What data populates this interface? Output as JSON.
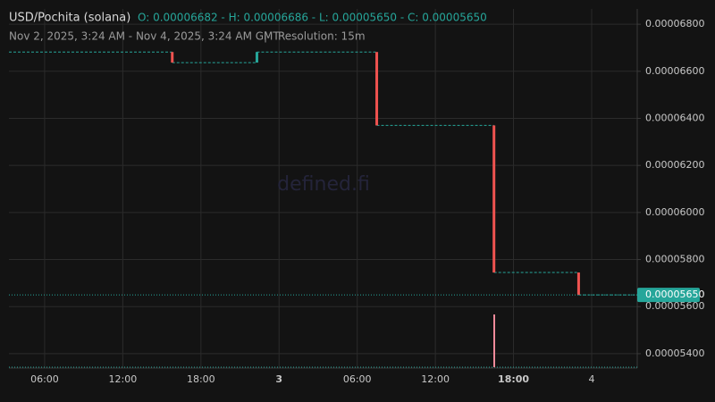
{
  "chart_data": {
    "type": "step",
    "title": "USD/Pochita (solana)",
    "ohlc_text": "O: 0.00006682 - H: 0.00006686 - L: 0.00005650 - C: 0.00005650",
    "range_text": "Nov 2, 2025, 3:24 AM - Nov 4, 2025, 3:24 AM GMT",
    "separator": "|",
    "resolution_text": "Resolution: 15m",
    "watermark": "defined.fi",
    "x": [
      15.8,
      22.3,
      31.5,
      40.5,
      47.0
    ],
    "open": [
      6.682e-05,
      6.637e-05,
      6.682e-05,
      6.37e-05,
      5.745e-05
    ],
    "close": [
      6.637e-05,
      6.682e-05,
      6.37e-05,
      5.745e-05,
      5.65e-05
    ],
    "up_color": "#26a69a",
    "down_color": "#ef5350",
    "line_color": "#26a69a",
    "last_price": {
      "value": 5.65e-05,
      "label": "0.00005650"
    },
    "xlim": [
      3.26,
      51.5
    ],
    "ylim": [
      5.339e-05,
      6.865e-05
    ],
    "xticks": [
      {
        "value": 6,
        "label": "06:00"
      },
      {
        "value": 12,
        "label": "12:00"
      },
      {
        "value": 18,
        "label": "18:00"
      },
      {
        "value": 24,
        "label": "3"
      },
      {
        "value": 30,
        "label": "06:00"
      },
      {
        "value": 36,
        "label": "12:00"
      },
      {
        "value": 42,
        "label": "18:00"
      },
      {
        "value": 48,
        "label": "4"
      }
    ],
    "yticks": [
      {
        "value": 6.8e-05,
        "label": "0.00006800"
      },
      {
        "value": 6.6e-05,
        "label": "0.00006600"
      },
      {
        "value": 6.4e-05,
        "label": "0.00006400"
      },
      {
        "value": 6.2e-05,
        "label": "0.00006200"
      },
      {
        "value": 6e-05,
        "label": "0.00006000"
      },
      {
        "value": 5.8e-05,
        "label": "0.00005800"
      },
      {
        "value": 5.6e-05,
        "label": "0.00005600"
      },
      {
        "value": 5.4e-05,
        "label": "0.00005400"
      }
    ],
    "grid": true
  }
}
